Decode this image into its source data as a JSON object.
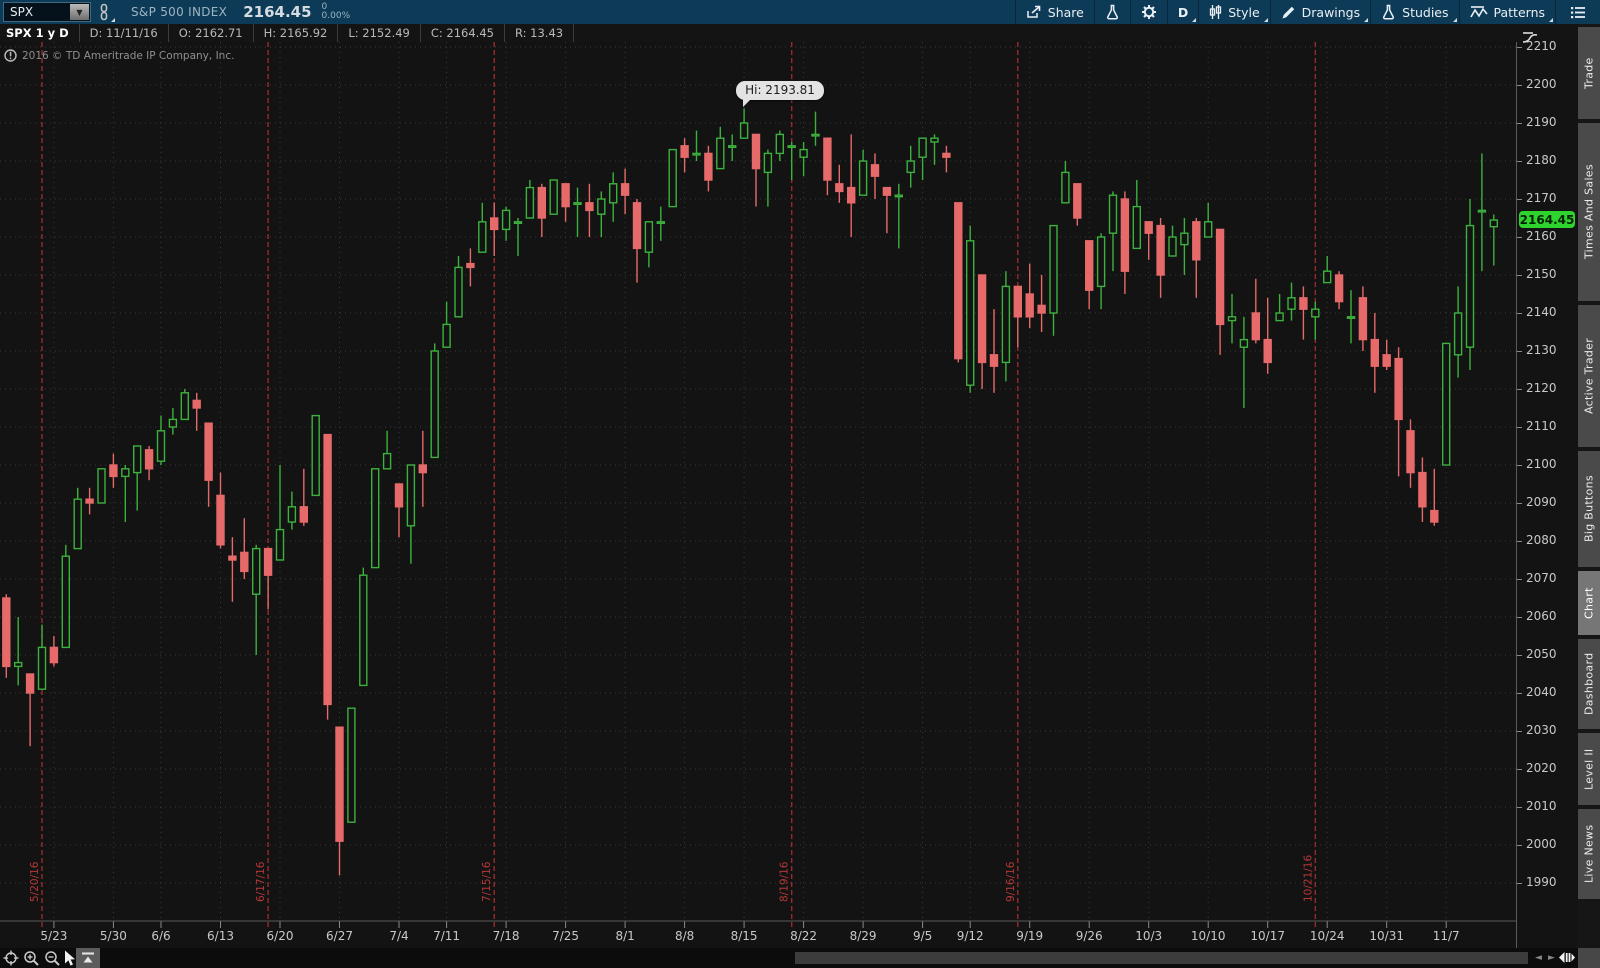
{
  "header": {
    "symbol": "SPX",
    "company": "S&P 500 INDEX",
    "last": "2164.45",
    "change": "0",
    "change_pct": "0.00%",
    "buttons": {
      "share": "Share",
      "period": "D",
      "style": "Style",
      "drawings": "Drawings",
      "studies": "Studies",
      "patterns": "Patterns"
    }
  },
  "ohlc_bar": {
    "title": "SPX 1 y D",
    "cells": [
      "D: 11/11/16",
      "O: 2162.71",
      "H: 2165.92",
      "L: 2152.49",
      "C: 2164.45",
      "R: 13.43"
    ]
  },
  "chart": {
    "copyright": "2016 © TD Ameritrade IP Company, Inc."
  },
  "sidebar": {
    "active": "Chart",
    "tabs": [
      "Trade",
      "Times And Sales",
      "Active Trader",
      "Big Buttons",
      "Chart",
      "Dashboard",
      "Level II",
      "Live News"
    ]
  },
  "chart_data": {
    "type": "candlestick",
    "symbol": "SPX",
    "timeframe": "1 y D",
    "title": "SPX 1 y D",
    "ylim": [
      1990,
      2210
    ],
    "grid": true,
    "y_ticks": [
      2210,
      2200,
      2190,
      2180,
      2170,
      2160,
      2150,
      2140,
      2130,
      2120,
      2110,
      2100,
      2090,
      2080,
      2070,
      2060,
      2050,
      2040,
      2030,
      2020,
      2010,
      2000,
      1990
    ],
    "x_labels": [
      "5/23",
      "5/30",
      "6/6",
      "6/13",
      "6/20",
      "6/27",
      "7/4",
      "7/11",
      "7/18",
      "7/25",
      "8/1",
      "8/8",
      "8/15",
      "8/22",
      "8/29",
      "9/5",
      "9/12",
      "9/19",
      "9/26",
      "10/3",
      "10/10",
      "10/17",
      "10/24",
      "10/31",
      "11/7"
    ],
    "expiration_lines": [
      "5/20/16",
      "6/17/16",
      "7/15/16",
      "8/19/16",
      "9/16/16",
      "10/21/16"
    ],
    "tooltip": {
      "text": "Hi: 2193.81",
      "anchor_date": "8/15",
      "value": 2193.81
    },
    "price_label": "2164.45",
    "current_price": 2164.45,
    "colors": {
      "up": "#3db13d",
      "down": "#e66a6a",
      "price_bubble": "#2ed32e",
      "expiration": "#9a2b2b",
      "expiration_label": "#b73737",
      "grid": "#383838",
      "axis_text": "#c9c9c9",
      "background": "#131313"
    },
    "candles": [
      [
        "5/17",
        2065,
        2066,
        2044,
        2047
      ],
      [
        "5/18",
        2047,
        2060,
        2042,
        2048
      ],
      [
        "5/19",
        2045,
        2045,
        2026,
        2040
      ],
      [
        "5/20",
        2041,
        2058,
        2041,
        2052
      ],
      [
        "5/23",
        2052,
        2055,
        2047,
        2048
      ],
      [
        "5/24",
        2052,
        2079,
        2052,
        2076
      ],
      [
        "5/25",
        2078,
        2094,
        2078,
        2091
      ],
      [
        "5/26",
        2091,
        2094,
        2087,
        2090
      ],
      [
        "5/27",
        2090,
        2099,
        2090,
        2099
      ],
      [
        "5/31",
        2100,
        2103,
        2094,
        2097
      ],
      [
        "6/1",
        2097,
        2100,
        2085,
        2099
      ],
      [
        "6/2",
        2098,
        2105,
        2088,
        2105
      ],
      [
        "6/3",
        2104,
        2105,
        2096,
        2099
      ],
      [
        "6/6",
        2101,
        2113,
        2100,
        2109
      ],
      [
        "6/7",
        2110,
        2115,
        2108,
        2112
      ],
      [
        "6/8",
        2112,
        2120,
        2112,
        2119
      ],
      [
        "6/9",
        2117,
        2119,
        2109,
        2115
      ],
      [
        "6/10",
        2111,
        2111,
        2089,
        2096
      ],
      [
        "6/13",
        2092,
        2098,
        2078,
        2079
      ],
      [
        "6/14",
        2076,
        2081,
        2064,
        2075
      ],
      [
        "6/15",
        2077,
        2086,
        2070,
        2072
      ],
      [
        "6/16",
        2066,
        2079,
        2050,
        2078
      ],
      [
        "6/17",
        2078,
        2078,
        2062,
        2071
      ],
      [
        "6/20",
        2075,
        2100,
        2075,
        2083
      ],
      [
        "6/21",
        2085,
        2093,
        2083,
        2089
      ],
      [
        "6/22",
        2089,
        2099,
        2084,
        2085
      ],
      [
        "6/23",
        2092,
        2113,
        2092,
        2113
      ],
      [
        "6/24",
        2108,
        2108,
        2033,
        2037
      ],
      [
        "6/27",
        2031,
        2031,
        1992,
        2001
      ],
      [
        "6/28",
        2006,
        2036,
        2006,
        2036
      ],
      [
        "6/29",
        2042,
        2073,
        2042,
        2071
      ],
      [
        "6/30",
        2073,
        2099,
        2073,
        2099
      ],
      [
        "7/1",
        2099,
        2109,
        2099,
        2103
      ],
      [
        "7/5",
        2095,
        2095,
        2081,
        2089
      ],
      [
        "7/6",
        2084,
        2100,
        2074,
        2100
      ],
      [
        "7/7",
        2100,
        2109,
        2089,
        2098
      ],
      [
        "7/8",
        2102,
        2132,
        2102,
        2130
      ],
      [
        "7/11",
        2131,
        2143,
        2131,
        2137
      ],
      [
        "7/12",
        2139,
        2155,
        2139,
        2152
      ],
      [
        "7/13",
        2153,
        2157,
        2147,
        2152
      ],
      [
        "7/14",
        2156,
        2169,
        2156,
        2164
      ],
      [
        "7/15",
        2165,
        2169,
        2155,
        2162
      ],
      [
        "7/18",
        2162,
        2168,
        2159,
        2167
      ],
      [
        "7/19",
        2164,
        2165,
        2155,
        2164
      ],
      [
        "7/20",
        2165,
        2175,
        2165,
        2173
      ],
      [
        "7/21",
        2173,
        2174,
        2160,
        2165
      ],
      [
        "7/22",
        2166,
        2175,
        2166,
        2175
      ],
      [
        "7/25",
        2174,
        2174,
        2164,
        2168
      ],
      [
        "7/26",
        2169,
        2173,
        2160,
        2169
      ],
      [
        "7/27",
        2169,
        2174,
        2160,
        2167
      ],
      [
        "7/28",
        2166,
        2172,
        2160,
        2170
      ],
      [
        "7/29",
        2169,
        2177,
        2164,
        2174
      ],
      [
        "8/1",
        2174,
        2178,
        2166,
        2171
      ],
      [
        "8/2",
        2169,
        2170,
        2148,
        2157
      ],
      [
        "8/3",
        2156,
        2164,
        2152,
        2164
      ],
      [
        "8/4",
        2164,
        2168,
        2159,
        2164
      ],
      [
        "8/5",
        2168,
        2183,
        2168,
        2183
      ],
      [
        "8/8",
        2184,
        2186,
        2177,
        2181
      ],
      [
        "8/9",
        2182,
        2188,
        2180,
        2182
      ],
      [
        "8/10",
        2182,
        2184,
        2172,
        2175
      ],
      [
        "8/11",
        2178,
        2189,
        2178,
        2186
      ],
      [
        "8/12",
        2184,
        2187,
        2180,
        2184
      ],
      [
        "8/15",
        2186,
        2193.81,
        2186,
        2190
      ],
      [
        "8/16",
        2187,
        2187,
        2168,
        2178
      ],
      [
        "8/17",
        2177,
        2183,
        2168,
        2182
      ],
      [
        "8/18",
        2182,
        2188,
        2180,
        2187
      ],
      [
        "8/19",
        2184,
        2185,
        2175,
        2184
      ],
      [
        "8/22",
        2181,
        2185,
        2176,
        2183
      ],
      [
        "8/23",
        2187,
        2193,
        2184,
        2187
      ],
      [
        "8/24",
        2186,
        2186,
        2171,
        2175
      ],
      [
        "8/25",
        2174,
        2179,
        2169,
        2172
      ],
      [
        "8/26",
        2173,
        2187,
        2160,
        2169
      ],
      [
        "8/29",
        2171,
        2183,
        2171,
        2180
      ],
      [
        "8/30",
        2179,
        2182,
        2170,
        2176
      ],
      [
        "8/31",
        2173,
        2173,
        2161,
        2171
      ],
      [
        "9/1",
        2171,
        2174,
        2157,
        2171
      ],
      [
        "9/2",
        2177,
        2184,
        2173,
        2180
      ],
      [
        "9/6",
        2181,
        2186,
        2175,
        2186
      ],
      [
        "9/7",
        2185,
        2187,
        2179,
        2186
      ],
      [
        "9/8",
        2182,
        2184,
        2177,
        2181
      ],
      [
        "9/9",
        2169,
        2169,
        2127,
        2128
      ],
      [
        "9/12",
        2121,
        2163,
        2119,
        2159
      ],
      [
        "9/13",
        2150,
        2150,
        2120,
        2127
      ],
      [
        "9/14",
        2129,
        2141,
        2119,
        2126
      ],
      [
        "9/15",
        2127,
        2151,
        2122,
        2147
      ],
      [
        "9/16",
        2147,
        2147,
        2131,
        2139
      ],
      [
        "9/19",
        2145,
        2153,
        2136,
        2139
      ],
      [
        "9/20",
        2142,
        2150,
        2135,
        2140
      ],
      [
        "9/21",
        2140,
        2163,
        2134,
        2163
      ],
      [
        "9/22",
        2169,
        2180,
        2169,
        2177
      ],
      [
        "9/23",
        2174,
        2174,
        2163,
        2165
      ],
      [
        "9/26",
        2159,
        2159,
        2141,
        2146
      ],
      [
        "9/27",
        2147,
        2161,
        2141,
        2160
      ],
      [
        "9/28",
        2161,
        2172,
        2151,
        2171
      ],
      [
        "9/29",
        2170,
        2172,
        2145,
        2151
      ],
      [
        "9/30",
        2157,
        2175,
        2157,
        2168
      ],
      [
        "10/3",
        2164,
        2164,
        2154,
        2161
      ],
      [
        "10/4",
        2163,
        2165,
        2144,
        2150
      ],
      [
        "10/5",
        2155,
        2163,
        2155,
        2160
      ],
      [
        "10/6",
        2158,
        2165,
        2150,
        2161
      ],
      [
        "10/7",
        2164,
        2165,
        2144,
        2154
      ],
      [
        "10/10",
        2160,
        2169,
        2160,
        2164
      ],
      [
        "10/11",
        2162,
        2162,
        2129,
        2137
      ],
      [
        "10/12",
        2138,
        2145,
        2132,
        2139
      ],
      [
        "10/13",
        2131,
        2139,
        2115,
        2133
      ],
      [
        "10/14",
        2140,
        2149,
        2132,
        2133
      ],
      [
        "10/17",
        2133,
        2144,
        2124,
        2127
      ],
      [
        "10/18",
        2138,
        2145,
        2138,
        2140
      ],
      [
        "10/19",
        2141,
        2148,
        2138,
        2144
      ],
      [
        "10/20",
        2144,
        2147,
        2133,
        2141
      ],
      [
        "10/21",
        2139,
        2143,
        2133,
        2141
      ],
      [
        "10/24",
        2148,
        2155,
        2148,
        2151
      ],
      [
        "10/25",
        2150,
        2151,
        2141,
        2143
      ],
      [
        "10/26",
        2139,
        2146,
        2132,
        2139
      ],
      [
        "10/27",
        2144,
        2147,
        2130,
        2133
      ],
      [
        "10/28",
        2133,
        2140,
        2119,
        2126
      ],
      [
        "10/31",
        2129,
        2133,
        2125,
        2126
      ],
      [
        "11/1",
        2128,
        2131,
        2097,
        2112
      ],
      [
        "11/2",
        2109,
        2112,
        2094,
        2098
      ],
      [
        "11/3",
        2098,
        2102,
        2085,
        2089
      ],
      [
        "11/4",
        2088,
        2099,
        2084,
        2085
      ],
      [
        "11/7",
        2100,
        2132,
        2100,
        2132
      ],
      [
        "11/8",
        2129,
        2147,
        2123,
        2140
      ],
      [
        "11/9",
        2131,
        2170,
        2125,
        2163
      ],
      [
        "11/10",
        2167,
        2182,
        2151,
        2167
      ],
      [
        "11/11",
        2162.71,
        2165.92,
        2152.49,
        2164.45
      ]
    ]
  }
}
